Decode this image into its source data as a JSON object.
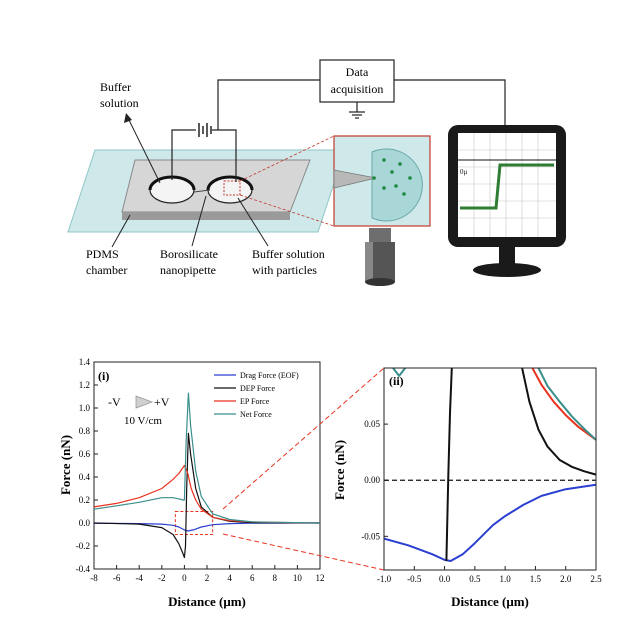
{
  "top_panel": {
    "labels": {
      "buffer_solution": [
        "Buffer",
        "solution"
      ],
      "data_acquisition": [
        "Data",
        "acquisition"
      ],
      "pdms_chamber": [
        "PDMS",
        "chamber"
      ],
      "nanopipette": [
        "Borosilicate",
        "nanopipette"
      ],
      "buffer_with_particles": [
        "Buffer solution",
        "with particles"
      ],
      "monitor_baseline": "0μ"
    }
  },
  "chart_data": [
    {
      "type": "line",
      "panel_label": "(i)",
      "xlabel": "Distance (μm)",
      "ylabel": "Force (nN)",
      "xlim": [
        -8,
        12
      ],
      "ylim": [
        -0.4,
        1.4
      ],
      "xticks": [
        "-8",
        "-6",
        "-4",
        "-2",
        "0",
        "2",
        "4",
        "6",
        "8",
        "10",
        "12"
      ],
      "yticks": [
        "-0.4",
        "-0.2",
        "0.0",
        "0.2",
        "0.4",
        "0.6",
        "0.8",
        "1.0",
        "1.2",
        "1.4"
      ],
      "annotation": {
        "left": "-V",
        "right": "+V",
        "field": "10 V/cm"
      },
      "legend_position": "top-right",
      "series": [
        {
          "name": "Drag Force (EOF)",
          "color": "#2b3fd0",
          "points": [
            [
              -8,
              -0.003
            ],
            [
              -4,
              -0.005
            ],
            [
              -2,
              -0.01
            ],
            [
              -1,
              -0.02
            ],
            [
              -0.5,
              -0.035
            ],
            [
              0,
              -0.06
            ],
            [
              0.3,
              -0.07
            ],
            [
              0.8,
              -0.06
            ],
            [
              1.5,
              -0.035
            ],
            [
              2.5,
              -0.015
            ],
            [
              4,
              -0.005
            ],
            [
              6,
              -0.002
            ],
            [
              12,
              0.0
            ]
          ]
        },
        {
          "name": "DEP Force",
          "color": "#111111",
          "points": [
            [
              -8,
              0.0
            ],
            [
              -4,
              -0.01
            ],
            [
              -2,
              -0.04
            ],
            [
              -1,
              -0.1
            ],
            [
              -0.5,
              -0.18
            ],
            [
              -0.15,
              -0.26
            ],
            [
              0,
              -0.3
            ],
            [
              0.1,
              -0.2
            ],
            [
              0.2,
              0.3
            ],
            [
              0.35,
              0.78
            ],
            [
              0.55,
              0.6
            ],
            [
              1,
              0.3
            ],
            [
              1.5,
              0.14
            ],
            [
              2.5,
              0.05
            ],
            [
              4,
              0.015
            ],
            [
              6,
              0.003
            ],
            [
              12,
              0.0
            ]
          ]
        },
        {
          "name": "EP Force",
          "color": "#e8321e",
          "points": [
            [
              -8,
              0.14
            ],
            [
              -6,
              0.17
            ],
            [
              -4,
              0.22
            ],
            [
              -2,
              0.3
            ],
            [
              -1,
              0.38
            ],
            [
              -0.5,
              0.43
            ],
            [
              0,
              0.5
            ],
            [
              0.3,
              0.43
            ],
            [
              0.6,
              0.3
            ],
            [
              1,
              0.2
            ],
            [
              1.5,
              0.12
            ],
            [
              2.5,
              0.05
            ],
            [
              4,
              0.02
            ],
            [
              6,
              0.01
            ],
            [
              8,
              0.005
            ],
            [
              12,
              0.0
            ]
          ]
        },
        {
          "name": "Net Force",
          "color": "#3a8f8c",
          "points": [
            [
              -8,
              0.12
            ],
            [
              -6,
              0.15
            ],
            [
              -4,
              0.18
            ],
            [
              -2,
              0.22
            ],
            [
              -1,
              0.22
            ],
            [
              -0.5,
              0.21
            ],
            [
              -0.1,
              0.2
            ],
            [
              0,
              0.2
            ],
            [
              0.15,
              0.7
            ],
            [
              0.35,
              1.13
            ],
            [
              0.55,
              0.85
            ],
            [
              1,
              0.45
            ],
            [
              1.5,
              0.23
            ],
            [
              2.5,
              0.08
            ],
            [
              4,
              0.03
            ],
            [
              6,
              0.01
            ],
            [
              12,
              0.0
            ]
          ]
        }
      ]
    },
    {
      "type": "line",
      "panel_label": "(ii)",
      "xlabel": "Distance (μm)",
      "ylabel": "Force (nN)",
      "xlim": [
        -1.0,
        2.5
      ],
      "ylim": [
        -0.08,
        0.1
      ],
      "xticks": [
        "-1.0",
        "-0.5",
        "0.0",
        "0.5",
        "1.0",
        "1.5",
        "2.0",
        "2.5"
      ],
      "yticks": [
        "-0.05",
        "0.00",
        "0.05"
      ],
      "reference_line": {
        "y": 0.0,
        "style": "dashed"
      },
      "series": [
        {
          "name": "Drag Force (EOF)",
          "color": "#2b3fd0",
          "points": [
            [
              -1.0,
              -0.052
            ],
            [
              -0.6,
              -0.058
            ],
            [
              -0.2,
              -0.066
            ],
            [
              0.0,
              -0.071
            ],
            [
              0.1,
              -0.072
            ],
            [
              0.3,
              -0.066
            ],
            [
              0.5,
              -0.056
            ],
            [
              0.8,
              -0.04
            ],
            [
              1.0,
              -0.032
            ],
            [
              1.3,
              -0.022
            ],
            [
              1.6,
              -0.014
            ],
            [
              2.0,
              -0.008
            ],
            [
              2.5,
              -0.004
            ]
          ]
        },
        {
          "name": "DEP Force",
          "color": "#111111",
          "points": [
            [
              0.03,
              -0.072
            ],
            [
              0.06,
              0.0
            ],
            [
              0.09,
              0.06
            ],
            [
              0.12,
              0.1
            ]
          ]
        },
        {
          "name": "DEP Force",
          "color": "#111111",
          "points": [
            [
              1.28,
              0.1
            ],
            [
              1.4,
              0.07
            ],
            [
              1.55,
              0.045
            ],
            [
              1.7,
              0.03
            ],
            [
              1.9,
              0.018
            ],
            [
              2.1,
              0.012
            ],
            [
              2.3,
              0.008
            ],
            [
              2.5,
              0.005
            ]
          ]
        },
        {
          "name": "EP Force",
          "color": "#e8321e",
          "points": [
            [
              1.45,
              0.1
            ],
            [
              1.6,
              0.085
            ],
            [
              1.8,
              0.07
            ],
            [
              2.0,
              0.058
            ],
            [
              2.2,
              0.048
            ],
            [
              2.5,
              0.036
            ]
          ]
        },
        {
          "name": "Net Force",
          "color": "#3a8f8c",
          "points": [
            [
              -0.85,
              0.1
            ],
            [
              -0.75,
              0.093
            ],
            [
              -0.65,
              0.1
            ]
          ]
        },
        {
          "name": "Net Force",
          "color": "#3a8f8c",
          "points": [
            [
              1.55,
              0.1
            ],
            [
              1.7,
              0.084
            ],
            [
              1.9,
              0.07
            ],
            [
              2.1,
              0.057
            ],
            [
              2.3,
              0.046
            ],
            [
              2.5,
              0.036
            ]
          ]
        }
      ]
    }
  ]
}
